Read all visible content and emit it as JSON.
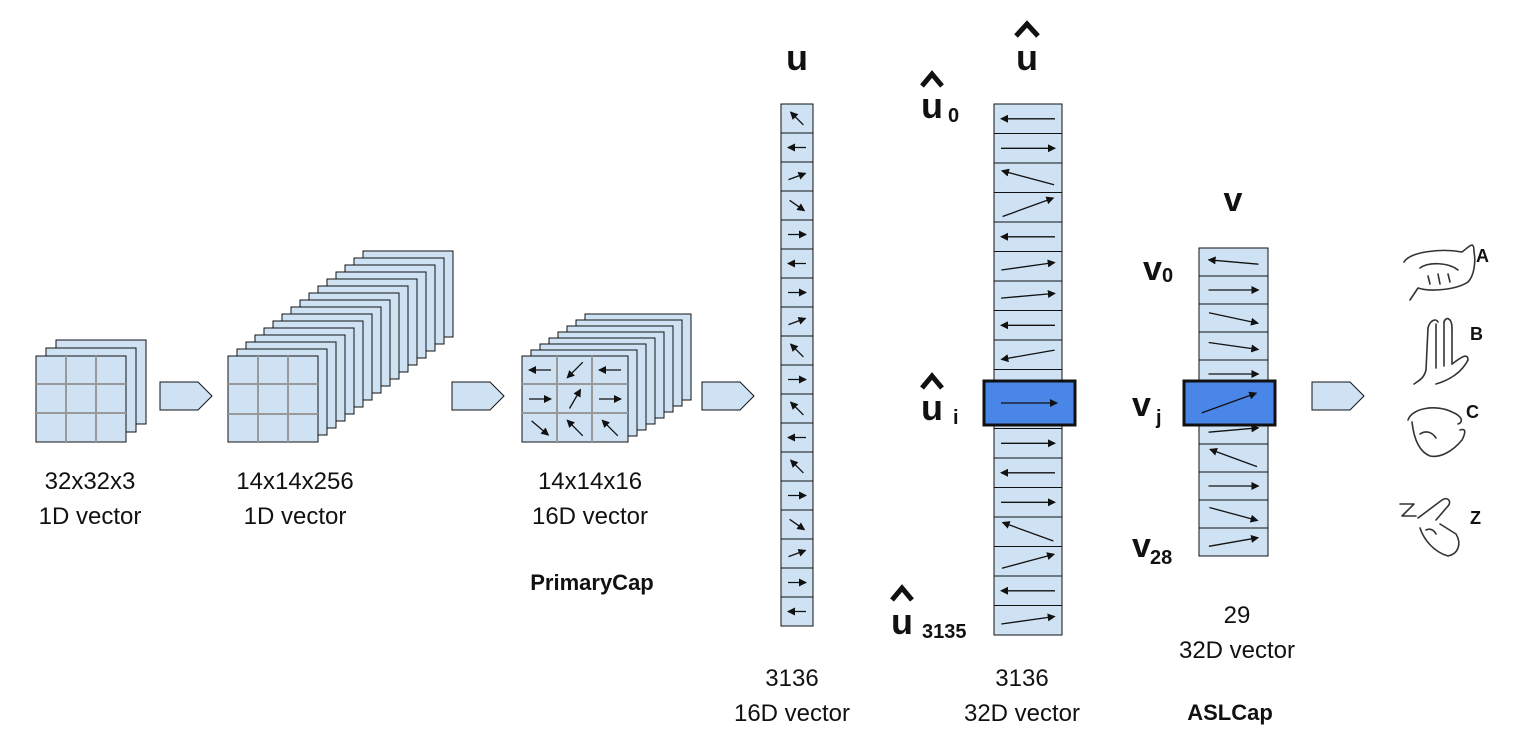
{
  "colors": {
    "cell_fill": "#cfe2f3",
    "highlight_fill": "#4a86e8",
    "grid_line": "#999999",
    "outline": "#111111"
  },
  "stages": [
    {
      "id": "input",
      "dims": "32x32x3",
      "desc": "1D vector"
    },
    {
      "id": "conv",
      "dims": "14x14x256",
      "desc": "1D vector"
    },
    {
      "id": "primary",
      "dims": "14x14x16",
      "desc": "16D vector",
      "name": "PrimaryCap"
    },
    {
      "id": "u",
      "dims": "3136",
      "desc": "16D vector",
      "symbol": "u"
    },
    {
      "id": "uhat",
      "dims": "3136",
      "desc": "32D vector",
      "symbol": "u",
      "sub_first": "0",
      "sub_mid": "i",
      "sub_last": "3135"
    },
    {
      "id": "v",
      "dims": "29",
      "desc": "32D vector",
      "name": "ASLCap",
      "symbol": "v",
      "sub_first": "0",
      "sub_mid": "j",
      "sub_last": "28"
    }
  ],
  "outputs": [
    {
      "letter": "A",
      "icon": "hand-sign-a-icon"
    },
    {
      "letter": "B",
      "icon": "hand-sign-b-icon"
    },
    {
      "letter": "C",
      "icon": "hand-sign-c-icon"
    },
    {
      "letter": "Z",
      "icon": "hand-sign-z-icon"
    }
  ]
}
